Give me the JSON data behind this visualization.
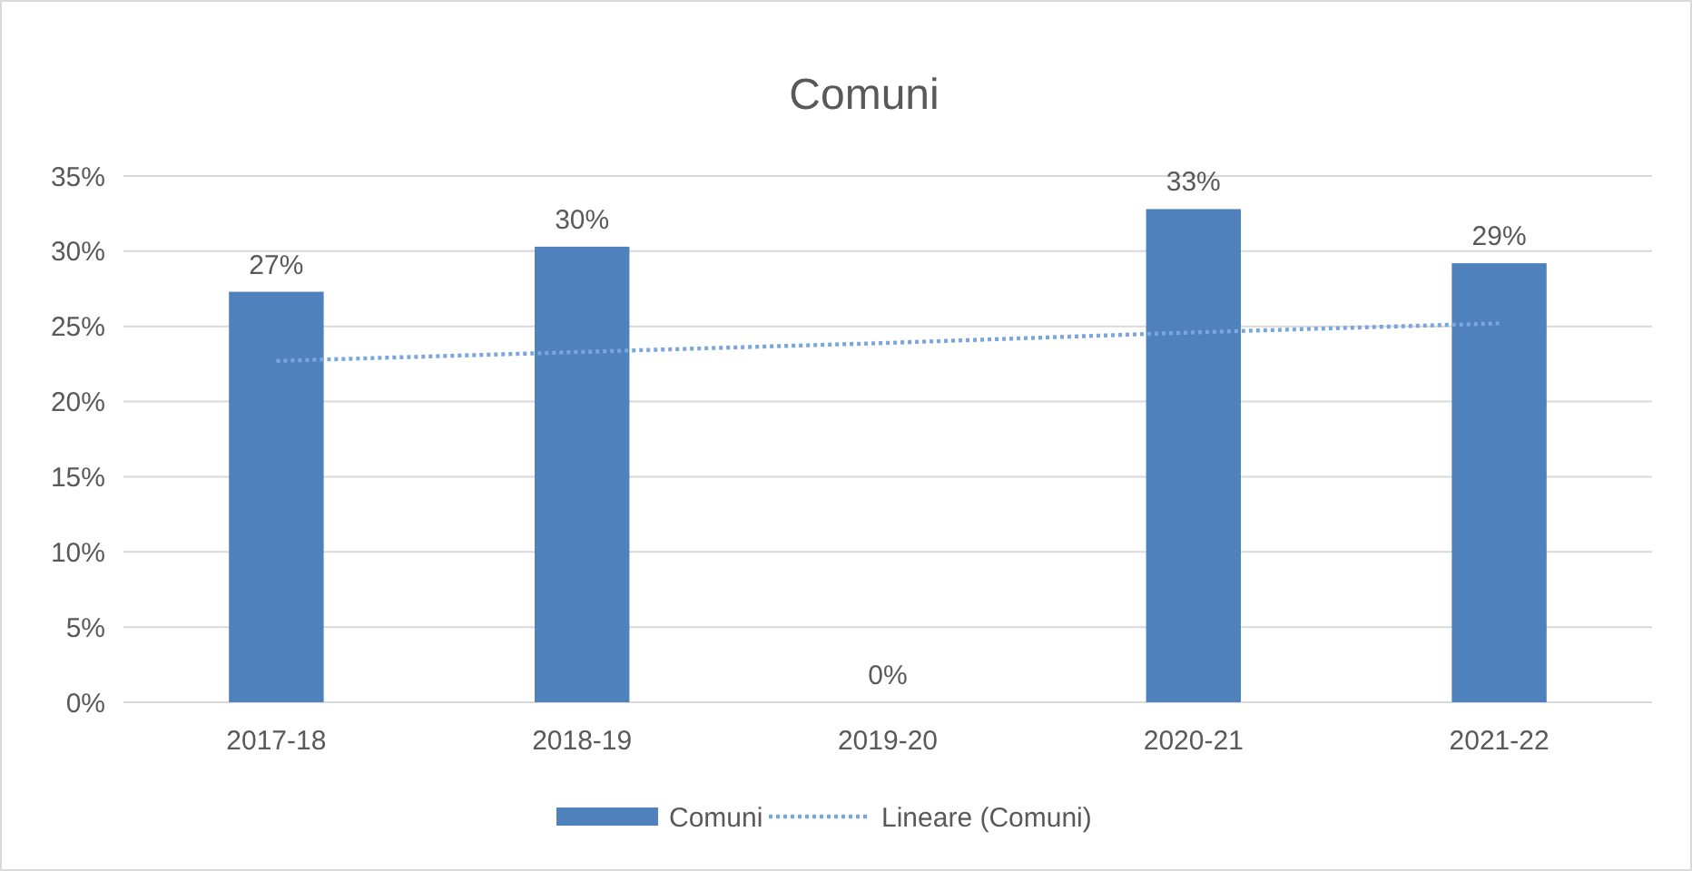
{
  "chart_data": {
    "type": "bar",
    "title": "Comuni",
    "categories": [
      "2017-18",
      "2018-19",
      "2019-20",
      "2020-21",
      "2021-22"
    ],
    "series": [
      {
        "name": "Comuni",
        "color": "#4f81bd",
        "values": [
          27.3,
          30.3,
          0,
          32.8,
          29.2
        ],
        "value_labels": [
          "27%",
          "30%",
          "0%",
          "33%",
          "29%"
        ]
      },
      {
        "name": "Lineare (Comuni)",
        "type": "line",
        "color": "#7aa6dc",
        "line_style": "dotted",
        "marker": "none",
        "values": [
          22.7,
          23.3,
          23.9,
          24.6,
          25.2
        ]
      }
    ],
    "ylim": [
      0,
      35
    ],
    "yticks": [
      {
        "value": 0,
        "label": "0%"
      },
      {
        "value": 5,
        "label": "5%"
      },
      {
        "value": 10,
        "label": "10%"
      },
      {
        "value": 15,
        "label": "15%"
      },
      {
        "value": 20,
        "label": "20%"
      },
      {
        "value": 25,
        "label": "25%"
      },
      {
        "value": 30,
        "label": "30%"
      },
      {
        "value": 35,
        "label": "35%"
      }
    ],
    "grid": "y",
    "legend": "bottom"
  }
}
